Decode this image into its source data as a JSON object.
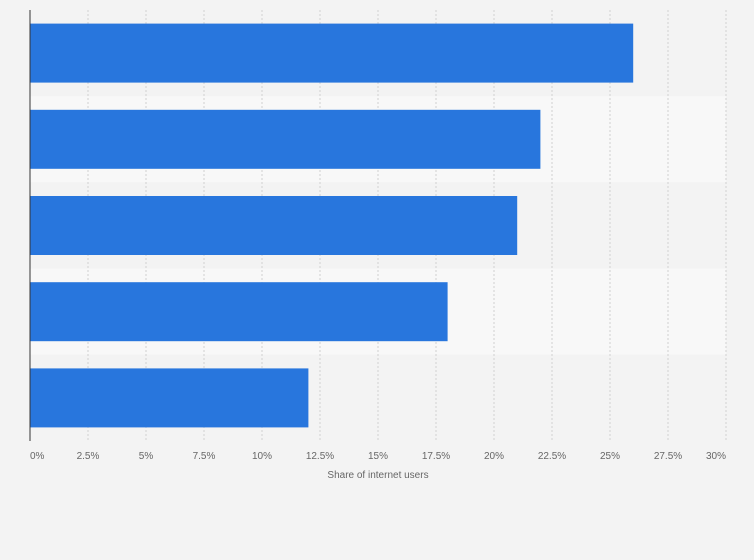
{
  "chart_data": {
    "type": "bar",
    "orientation": "horizontal",
    "categories": [
      "",
      "",
      "",
      "",
      ""
    ],
    "values": [
      26,
      22,
      21,
      18,
      12
    ],
    "title": "",
    "xlabel": "Share of internet users",
    "ylabel": "",
    "xlim": [
      0,
      30
    ],
    "ticks": [
      "0%",
      "2.5%",
      "5%",
      "7.5%",
      "10%",
      "12.5%",
      "15%",
      "17.5%",
      "20%",
      "22.5%",
      "25%",
      "27.5%",
      "30%"
    ],
    "grid": true,
    "legend": "none",
    "colors": {
      "bar": "#2876dd",
      "background": "#f3f3f3",
      "band_alt": "#f8f8f8",
      "grid": "#d0d0d0",
      "axis": "#333333",
      "text": "#666666"
    }
  }
}
